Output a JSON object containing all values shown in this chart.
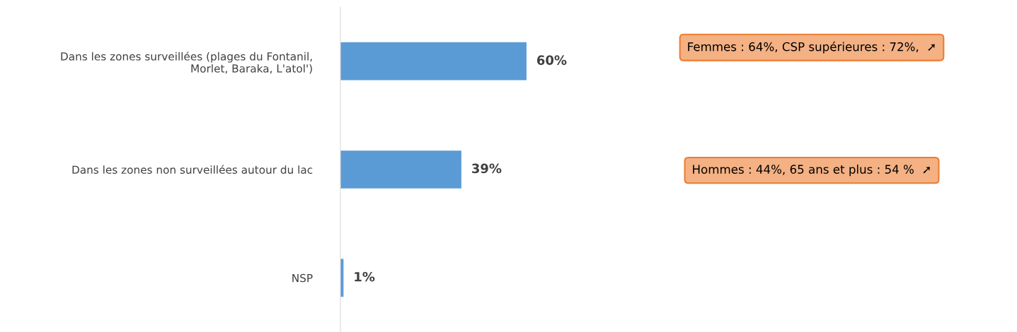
{
  "chart_data": {
    "type": "bar",
    "orientation": "horizontal",
    "categories": [
      "Dans les zones surveillées (plages du Fontanil,\nMorlet, Baraka, L'atol')",
      "Dans les zones non surveillées autour du lac",
      "NSP"
    ],
    "values": [
      60,
      39,
      1
    ],
    "color": "#5b9bd5",
    "value_labels": [
      "60%",
      "39%",
      "1%"
    ],
    "annotations": [
      "Femmes : 64%, CSP supérieures : 72%,  ➚",
      "Hommes : 44%, 65 ans et plus : 54 %  ➚"
    ],
    "grid": false,
    "legend": false
  }
}
